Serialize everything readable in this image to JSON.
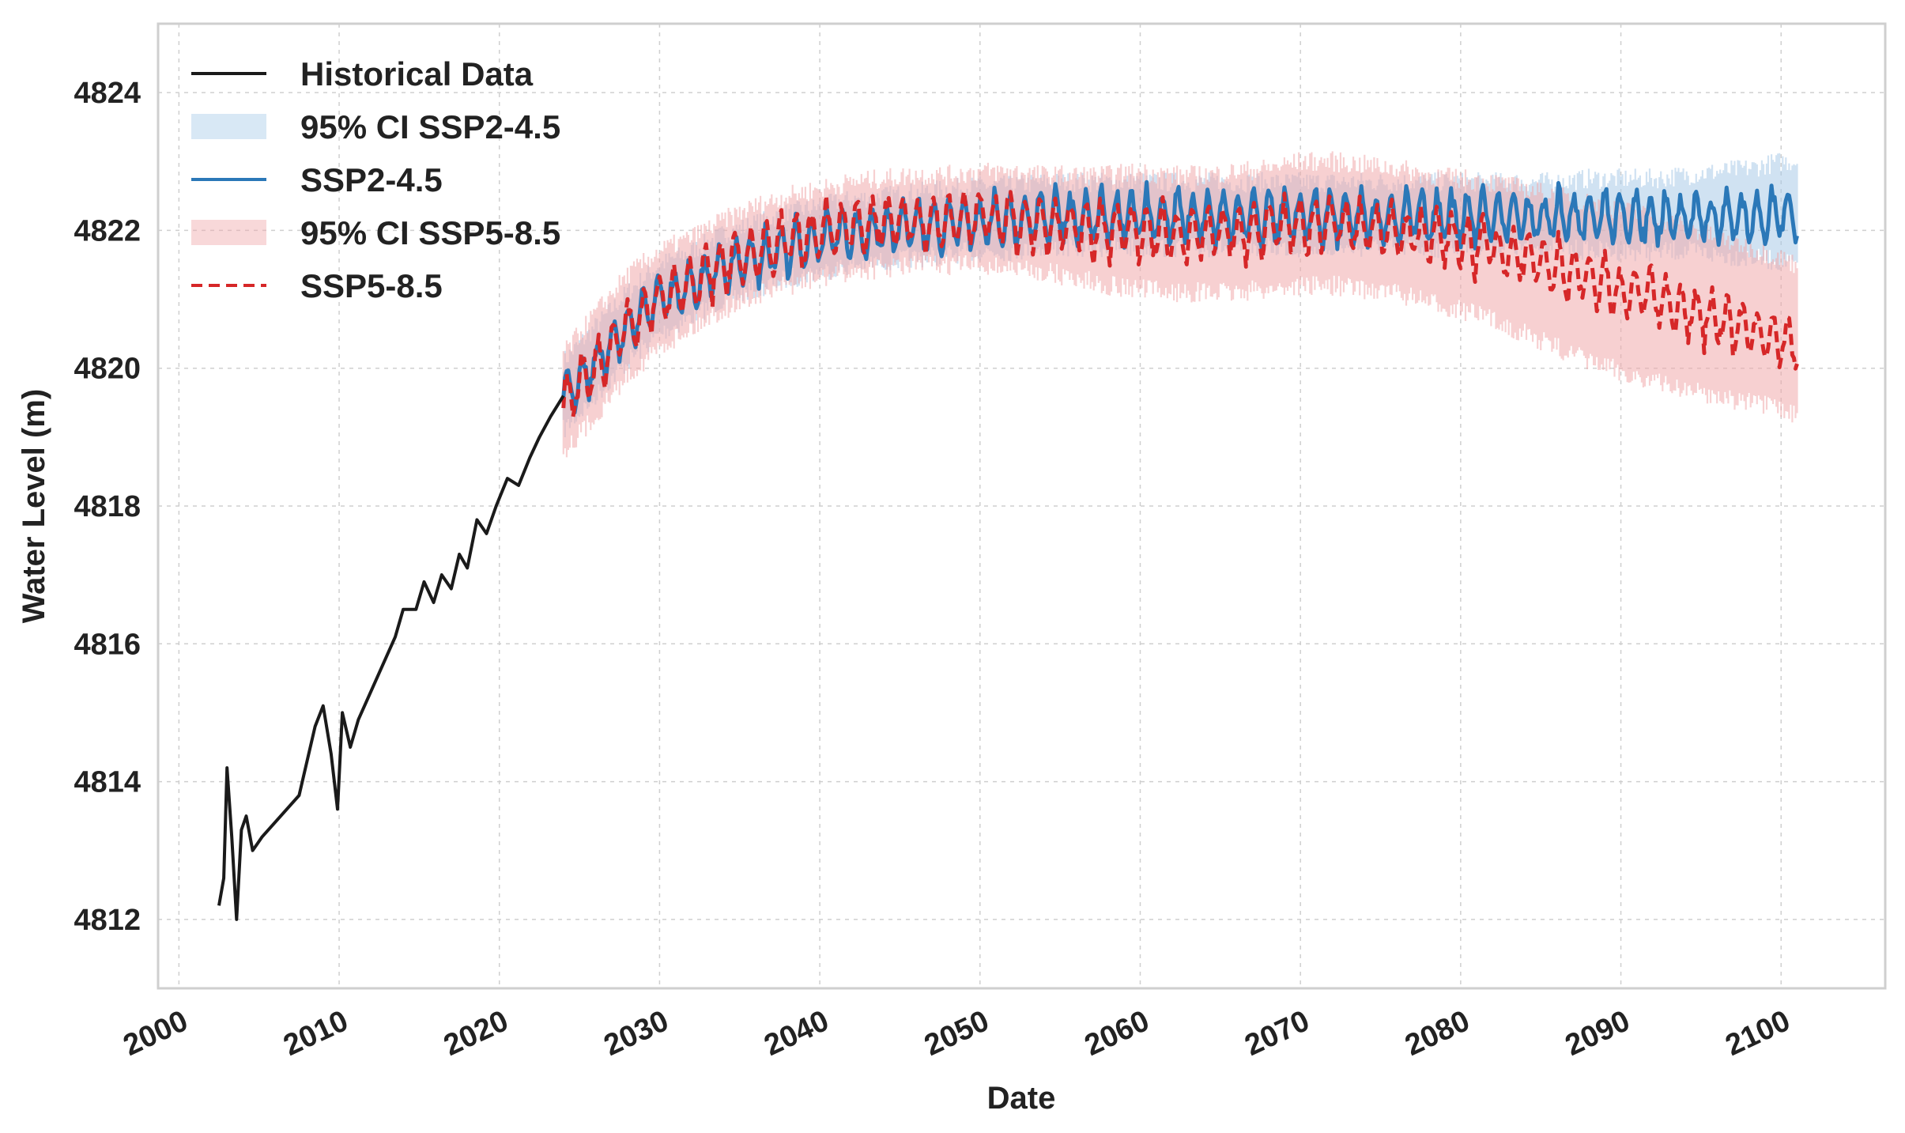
{
  "chart_data": {
    "type": "line",
    "title": "",
    "xlabel": "Date",
    "ylabel": "Water Level (m)",
    "xlim": [
      1998.7,
      2106.5
    ],
    "ylim": [
      4811.0,
      4825.0
    ],
    "xticks": [
      2000,
      2010,
      2020,
      2030,
      2040,
      2050,
      2060,
      2070,
      2080,
      2090,
      2100
    ],
    "yticks": [
      4812,
      4814,
      4816,
      4818,
      4820,
      4822,
      4824
    ],
    "grid": true,
    "legend_position": "top-left",
    "legend": [
      {
        "key": "hist",
        "label": "Historical Data",
        "kind": "line",
        "color": "#1a1a1a"
      },
      {
        "key": "ci245",
        "label": "95% CI SSP2-4.5",
        "kind": "band",
        "color": "#a9cbe8"
      },
      {
        "key": "ssp245",
        "label": "SSP2-4.5",
        "kind": "line",
        "color": "#2b78b8"
      },
      {
        "key": "ci585",
        "label": "95% CI SSP5-8.5",
        "kind": "band",
        "color": "#f0a9ab"
      },
      {
        "key": "ssp585",
        "label": "SSP5-8.5",
        "kind": "dashed",
        "color": "#d62728"
      }
    ],
    "historical": {
      "name": "Historical Data",
      "x": [
        2002.5,
        2002.8,
        2003.0,
        2003.3,
        2003.6,
        2003.9,
        2004.2,
        2004.6,
        2004.9,
        2005.2,
        2007.5,
        2008.0,
        2008.5,
        2009.0,
        2009.5,
        2009.9,
        2010.2,
        2010.7,
        2011.2,
        2013.5,
        2014.0,
        2014.8,
        2015.3,
        2015.9,
        2016.4,
        2017.0,
        2017.5,
        2018.0,
        2018.6,
        2019.2,
        2019.8,
        2020.5,
        2021.2,
        2021.9,
        2022.5,
        2023.2,
        2024.0
      ],
      "y": [
        4812.2,
        4812.6,
        4814.2,
        4813.2,
        4812.0,
        4813.3,
        4813.5,
        4813.0,
        4813.1,
        4813.2,
        4813.8,
        4814.3,
        4814.8,
        4815.1,
        4814.4,
        4813.6,
        4815.0,
        4814.5,
        4814.9,
        4816.1,
        4816.5,
        4816.5,
        4816.9,
        4816.6,
        4817.0,
        4816.8,
        4817.3,
        4817.1,
        4817.8,
        4817.6,
        4818.0,
        4818.4,
        4818.3,
        4818.7,
        4819.0,
        4819.3,
        4819.6
      ]
    },
    "series": [
      {
        "name": "SSP2-4.5",
        "x": [
          2024,
          2026,
          2028,
          2030,
          2032,
          2034,
          2036,
          2038,
          2040,
          2042,
          2044,
          2046,
          2048,
          2050,
          2052,
          2054,
          2056,
          2058,
          2060,
          2062,
          2064,
          2066,
          2068,
          2070,
          2072,
          2074,
          2076,
          2078,
          2080,
          2082,
          2084,
          2086,
          2088,
          2090,
          2092,
          2094,
          2096,
          2098,
          2100,
          2101
        ],
        "y": [
          4819.6,
          4820.1,
          4820.6,
          4821.0,
          4821.2,
          4821.45,
          4821.6,
          4821.75,
          4821.85,
          4821.95,
          4822.0,
          4822.05,
          4822.1,
          4822.15,
          4822.15,
          4822.2,
          4822.2,
          4822.2,
          4822.2,
          4822.2,
          4822.2,
          4822.2,
          4822.2,
          4822.2,
          4822.2,
          4822.2,
          4822.2,
          4822.2,
          4822.2,
          4822.2,
          4822.2,
          4822.2,
          4822.2,
          4822.2,
          4822.2,
          4822.2,
          4822.2,
          4822.2,
          4822.25,
          4822.2
        ],
        "ci_low": [
          4819.1,
          4819.6,
          4820.1,
          4820.5,
          4820.75,
          4821.0,
          4821.15,
          4821.3,
          4821.4,
          4821.5,
          4821.55,
          4821.6,
          4821.65,
          4821.7,
          4821.7,
          4821.75,
          4821.75,
          4821.75,
          4821.75,
          4821.75,
          4821.75,
          4821.75,
          4821.75,
          4821.75,
          4821.75,
          4821.75,
          4821.75,
          4821.75,
          4821.75,
          4821.75,
          4821.75,
          4821.75,
          4821.7,
          4821.7,
          4821.7,
          4821.7,
          4821.65,
          4821.6,
          4821.55,
          4821.5
        ],
        "ci_high": [
          4820.1,
          4820.6,
          4821.1,
          4821.5,
          4821.7,
          4821.95,
          4822.1,
          4822.25,
          4822.35,
          4822.45,
          4822.5,
          4822.55,
          4822.6,
          4822.65,
          4822.65,
          4822.7,
          4822.7,
          4822.7,
          4822.7,
          4822.7,
          4822.7,
          4822.7,
          4822.7,
          4822.7,
          4822.7,
          4822.7,
          4822.7,
          4822.7,
          4822.7,
          4822.7,
          4822.7,
          4822.7,
          4822.75,
          4822.75,
          4822.75,
          4822.8,
          4822.85,
          4822.9,
          4823.0,
          4823.0
        ]
      },
      {
        "name": "SSP5-8.5",
        "x": [
          2024,
          2026,
          2028,
          2030,
          2032,
          2034,
          2036,
          2038,
          2040,
          2042,
          2044,
          2046,
          2048,
          2050,
          2052,
          2054,
          2056,
          2058,
          2060,
          2062,
          2064,
          2066,
          2068,
          2070,
          2072,
          2074,
          2076,
          2078,
          2080,
          2082,
          2084,
          2086,
          2088,
          2090,
          2092,
          2094,
          2096,
          2098,
          2100,
          2101
        ],
        "y": [
          4819.5,
          4820.0,
          4820.6,
          4821.0,
          4821.25,
          4821.5,
          4821.7,
          4821.85,
          4821.95,
          4822.05,
          4822.1,
          4822.15,
          4822.15,
          4822.2,
          4822.15,
          4822.1,
          4822.05,
          4822.0,
          4822.0,
          4821.95,
          4821.95,
          4821.95,
          4822.0,
          4822.1,
          4822.1,
          4822.05,
          4822.0,
          4821.9,
          4821.85,
          4821.75,
          4821.6,
          4821.45,
          4821.3,
          4821.15,
          4821.0,
          4820.85,
          4820.7,
          4820.55,
          4820.4,
          4820.3
        ],
        "ci_low": [
          4818.8,
          4819.3,
          4819.9,
          4820.3,
          4820.6,
          4820.85,
          4821.05,
          4821.2,
          4821.3,
          4821.4,
          4821.45,
          4821.5,
          4821.5,
          4821.5,
          4821.45,
          4821.4,
          4821.3,
          4821.2,
          4821.15,
          4821.1,
          4821.1,
          4821.1,
          4821.15,
          4821.2,
          4821.2,
          4821.15,
          4821.1,
          4820.95,
          4820.85,
          4820.7,
          4820.5,
          4820.3,
          4820.1,
          4819.95,
          4819.8,
          4819.7,
          4819.6,
          4819.5,
          4819.4,
          4819.3
        ],
        "ci_high": [
          4820.2,
          4820.8,
          4821.35,
          4821.7,
          4821.9,
          4822.15,
          4822.35,
          4822.5,
          4822.6,
          4822.7,
          4822.75,
          4822.8,
          4822.8,
          4822.85,
          4822.85,
          4822.8,
          4822.8,
          4822.8,
          4822.85,
          4822.8,
          4822.8,
          4822.85,
          4822.9,
          4823.0,
          4823.0,
          4822.95,
          4822.9,
          4822.8,
          4822.75,
          4822.7,
          4822.6,
          4822.5,
          4822.4,
          4822.3,
          4822.2,
          4822.05,
          4821.9,
          4821.75,
          4821.6,
          4821.5
        ]
      }
    ]
  }
}
